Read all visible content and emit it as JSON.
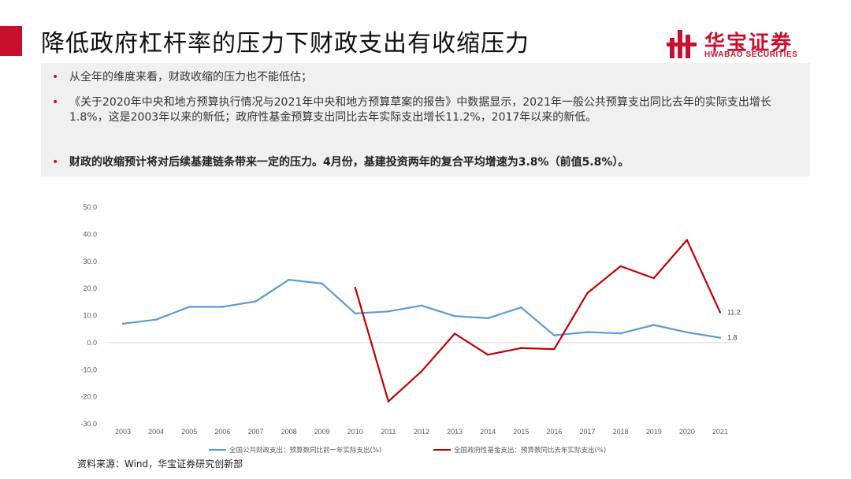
{
  "slide": {
    "title": "降低政府杠杆率的压力下财政支出有收缩压力",
    "logo_cn": "华宝证券",
    "logo_en": "HWABAO SECURITIES",
    "source": "资料来源：Wind，华宝证券研究创新部"
  },
  "bullets": [
    {
      "text": "从全年的维度来看，财政收缩的压力也不能低估；",
      "bold": false
    },
    {
      "text": "《关于2020年中央和地方预算执行情况与2021年中央和地方预算草案的报告》中数据显示，2021年一般公共预算支出同比去年的实际支出增长1.8%，这是2003年以来的新低；政府性基金预算支出同比去年实际支出增长11.2%，2017年以来的新低。",
      "bold": false
    },
    {
      "text": "财政的收缩预计将对后续基建链条带来一定的压力。4月份，基建投资两年的复合平均增速为3.8%（前值5.8%）。",
      "bold": true
    }
  ],
  "colors": {
    "accent": "#c8102e",
    "series1": "#5b9bd5",
    "series2": "#c00000"
  },
  "chart_data": {
    "type": "line",
    "title": "",
    "xlabel": "",
    "ylabel": "",
    "x": [
      "2003",
      "2004",
      "2005",
      "2006",
      "2007",
      "2008",
      "2009",
      "2010",
      "2011",
      "2012",
      "2013",
      "2014",
      "2015",
      "2016",
      "2017",
      "2018",
      "2019",
      "2020",
      "2021"
    ],
    "ylim": [
      -30,
      50
    ],
    "yticks": [
      "50.0",
      "40.0",
      "30.0",
      "20.0",
      "10.0",
      "0.0",
      "-10.0",
      "-20.0",
      "-30.0"
    ],
    "grid": false,
    "legend_position": "bottom",
    "series": [
      {
        "name": "全国公共财政支出：预算数同比前一年实际支出(%)",
        "values": [
          7.0,
          8.5,
          13.2,
          13.2,
          15.2,
          23.2,
          21.8,
          10.8,
          11.5,
          13.7,
          9.8,
          9.0,
          13.0,
          2.7,
          3.9,
          3.4,
          6.5,
          3.8,
          1.8
        ]
      },
      {
        "name": "全国政府性基金支出：预算数同比去年实际支出(%)",
        "values": [
          null,
          null,
          null,
          null,
          null,
          null,
          null,
          20.3,
          -21.7,
          -10.6,
          3.3,
          -4.5,
          -2.0,
          -2.4,
          18.3,
          28.2,
          23.8,
          37.9,
          11.2
        ]
      }
    ],
    "annotations": [
      {
        "series": 1,
        "index": 18,
        "text": "11.2"
      },
      {
        "series": 0,
        "index": 18,
        "text": "1.8"
      }
    ]
  }
}
